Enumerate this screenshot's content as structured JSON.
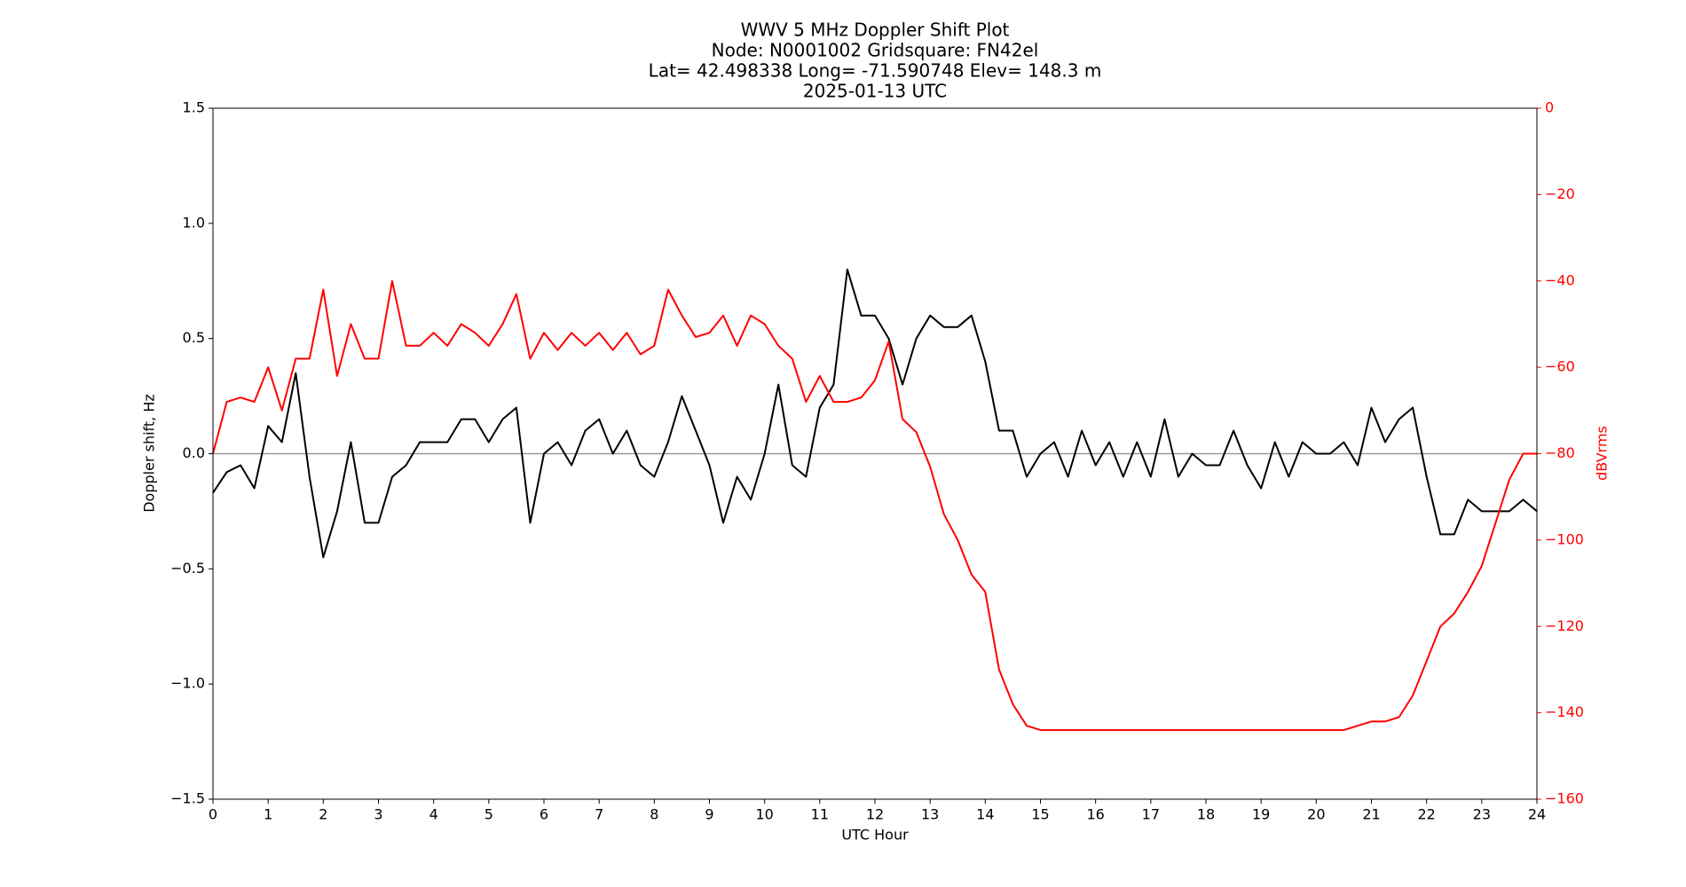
{
  "chart_data": {
    "type": "line",
    "title_lines": [
      "WWV 5 MHz Doppler Shift Plot",
      "Node:  N0001002     Gridsquare:  FN42el",
      "Lat= 42.498338    Long= -71.590748    Elev= 148.3 m",
      "2025-01-13  UTC"
    ],
    "xlabel": "UTC Hour",
    "ylabel": "Doppler shift, Hz",
    "y2label": "dBVrms",
    "x": [
      0,
      0.25,
      0.5,
      0.75,
      1,
      1.25,
      1.5,
      1.75,
      2,
      2.25,
      2.5,
      2.75,
      3,
      3.25,
      3.5,
      3.75,
      4,
      4.25,
      4.5,
      4.75,
      5,
      5.25,
      5.5,
      5.75,
      6,
      6.25,
      6.5,
      6.75,
      7,
      7.25,
      7.5,
      7.75,
      8,
      8.25,
      8.5,
      8.75,
      9,
      9.25,
      9.5,
      9.75,
      10,
      10.25,
      10.5,
      10.75,
      11,
      11.25,
      11.5,
      11.75,
      12,
      12.25,
      12.5,
      12.75,
      13,
      13.25,
      13.5,
      13.75,
      14,
      14.25,
      14.5,
      14.75,
      15,
      15.25,
      15.5,
      15.75,
      16,
      16.25,
      16.5,
      16.75,
      17,
      17.25,
      17.5,
      17.75,
      18,
      18.25,
      18.5,
      18.75,
      19,
      19.25,
      19.5,
      19.75,
      20,
      20.25,
      20.5,
      20.75,
      21,
      21.25,
      21.5,
      21.75,
      22,
      22.25,
      22.5,
      22.75,
      23,
      23.25,
      23.5,
      23.75,
      24
    ],
    "series": [
      {
        "name": "Doppler shift",
        "color": "#000000",
        "axis": "y",
        "values": [
          -0.17,
          -0.08,
          -0.05,
          -0.15,
          0.12,
          0.05,
          0.35,
          -0.1,
          -0.45,
          -0.25,
          0.05,
          -0.3,
          -0.3,
          -0.1,
          -0.05,
          0.05,
          0.05,
          0.05,
          0.15,
          0.15,
          0.05,
          0.15,
          0.2,
          -0.3,
          0.0,
          0.05,
          -0.05,
          0.1,
          0.15,
          0.0,
          0.1,
          -0.05,
          -0.1,
          0.05,
          0.25,
          0.1,
          -0.05,
          -0.3,
          -0.1,
          -0.2,
          0.0,
          0.3,
          -0.05,
          -0.1,
          0.2,
          0.3,
          0.8,
          0.6,
          0.6,
          0.5,
          0.3,
          0.5,
          0.6,
          0.55,
          0.55,
          0.6,
          0.4,
          0.1,
          0.1,
          -0.1,
          0.0,
          0.05,
          -0.1,
          0.1,
          -0.05,
          0.05,
          -0.1,
          0.05,
          -0.1,
          0.15,
          -0.1,
          0.0,
          -0.05,
          -0.05,
          0.1,
          -0.05,
          -0.15,
          0.05,
          -0.1,
          0.05,
          0.0,
          0.0,
          0.05,
          -0.05,
          0.2,
          0.05,
          0.15,
          0.2,
          -0.1,
          -0.35,
          -0.35,
          -0.2,
          -0.25,
          -0.25,
          -0.25,
          -0.2,
          -0.25
        ]
      },
      {
        "name": "dBVrms",
        "color": "#ff0000",
        "axis": "y2",
        "values": [
          -80,
          -68,
          -67,
          -68,
          -60,
          -70,
          -58,
          -58,
          -42,
          -62,
          -50,
          -58,
          -58,
          -40,
          -55,
          -55,
          -52,
          -55,
          -50,
          -52,
          -55,
          -50,
          -43,
          -58,
          -52,
          -56,
          -52,
          -55,
          -52,
          -56,
          -52,
          -57,
          -55,
          -42,
          -48,
          -53,
          -52,
          -48,
          -55,
          -48,
          -50,
          -55,
          -58,
          -68,
          -62,
          -68,
          -68,
          -67,
          -63,
          -54,
          -72,
          -75,
          -83,
          -94,
          -100,
          -108,
          -112,
          -130,
          -138,
          -143,
          -144,
          -144,
          -144,
          -144,
          -144,
          -144,
          -144,
          -144,
          -144,
          -144,
          -144,
          -144,
          -144,
          -144,
          -144,
          -144,
          -144,
          -144,
          -144,
          -144,
          -144,
          -144,
          -144,
          -143,
          -142,
          -142,
          -141,
          -136,
          -128,
          -120,
          -117,
          -112,
          -106,
          -96,
          -86,
          -80,
          -80
        ]
      }
    ],
    "xlim": [
      0,
      24
    ],
    "xticks": [
      0,
      1,
      2,
      3,
      4,
      5,
      6,
      7,
      8,
      9,
      10,
      11,
      12,
      13,
      14,
      15,
      16,
      17,
      18,
      19,
      20,
      21,
      22,
      23,
      24
    ],
    "ylim": [
      -1.5,
      1.5
    ],
    "yticks": [
      {
        "value": -1.5,
        "label": "−1.5"
      },
      {
        "value": -1.0,
        "label": "−1.0"
      },
      {
        "value": -0.5,
        "label": "−0.5"
      },
      {
        "value": 0,
        "label": "0.0"
      },
      0.5,
      {
        "value": 1.0,
        "label": "1.0"
      },
      1.5
    ],
    "y2lim": [
      -160,
      0
    ],
    "y2ticks": [
      {
        "value": -160,
        "label": "−160"
      },
      {
        "value": -140,
        "label": "−140"
      },
      {
        "value": -120,
        "label": "−120"
      },
      {
        "value": -100,
        "label": "−100"
      },
      {
        "value": -80,
        "label": "−80"
      },
      {
        "value": -60,
        "label": "−60"
      },
      {
        "value": -40,
        "label": "−40"
      },
      {
        "value": -20,
        "label": "−20"
      },
      0
    ],
    "y2color": "#ff0000",
    "zero_line": true,
    "grid": false
  }
}
